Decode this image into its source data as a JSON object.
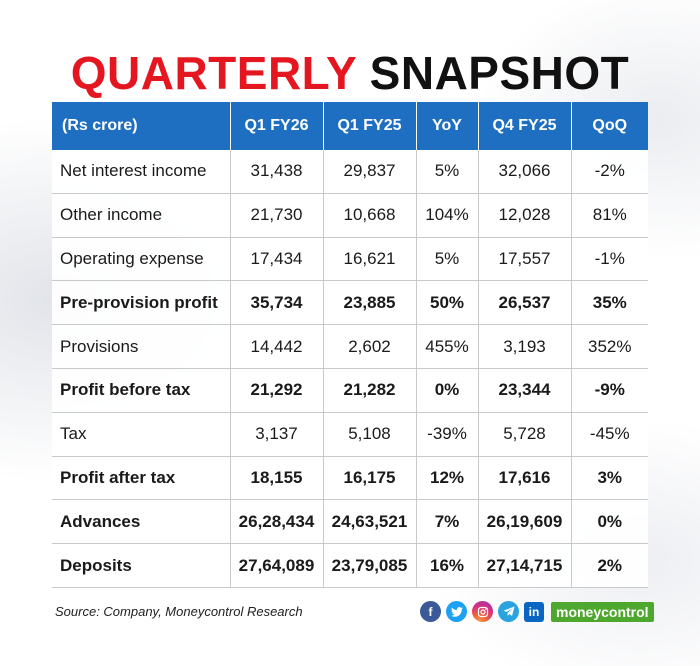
{
  "title": {
    "part1": "QUARTERLY",
    "part2": "SNAPSHOT"
  },
  "table": {
    "headers": [
      "(Rs crore)",
      "Q1 FY26",
      "Q1 FY25",
      "YoY",
      "Q4 FY25",
      "QoQ"
    ],
    "rows": [
      [
        "Net interest income",
        "31,438",
        "29,837",
        "5%",
        "32,066",
        "-2%"
      ],
      [
        "Other income",
        "21,730",
        "10,668",
        "104%",
        "12,028",
        "81%"
      ],
      [
        "Operating expense",
        "17,434",
        "16,621",
        "5%",
        "17,557",
        "-1%"
      ],
      [
        "Pre-provision profit",
        "35,734",
        "23,885",
        "50%",
        "26,537",
        "35%"
      ],
      [
        "Provisions",
        "14,442",
        "2,602",
        "455%",
        "3,193",
        "352%"
      ],
      [
        "Profit before tax",
        "21,292",
        "21,282",
        "0%",
        "23,344",
        "-9%"
      ],
      [
        "Tax",
        "3,137",
        "5,108",
        "-39%",
        "5,728",
        "-45%"
      ],
      [
        "Profit after tax",
        "18,155",
        "16,175",
        "12%",
        "17,616",
        "3%"
      ],
      [
        "Advances",
        "26,28,434",
        "24,63,521",
        "7%",
        "26,19,609",
        "0%"
      ],
      [
        "Deposits",
        "27,64,089",
        "23,79,085",
        "16%",
        "27,14,715",
        "2%"
      ]
    ]
  },
  "footer": {
    "source": "Source: Company, Moneycontrol Research",
    "social_icons": [
      "facebook-icon",
      "twitter-icon",
      "instagram-icon",
      "telegram-icon",
      "linkedin-icon"
    ],
    "brand": "moneycontrol"
  },
  "colors": {
    "title_red": "#e4161f",
    "header_blue": "#1e6fc1",
    "brand_green": "#4fa82e"
  }
}
